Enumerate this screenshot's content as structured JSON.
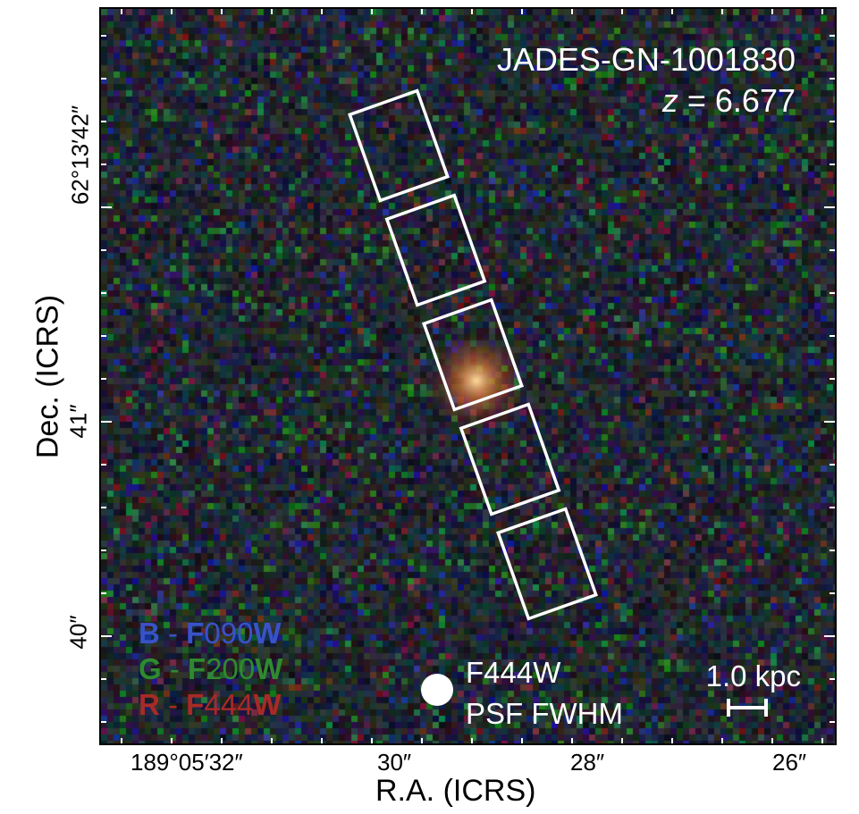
{
  "target": {
    "name": "JADES-GN-1001830",
    "redshift_symbol": "z",
    "redshift_rest": " = 6.677"
  },
  "legend": [
    {
      "ch": "B",
      "sep": " - ",
      "f": "F",
      "num": "090",
      "w": "W",
      "color": "#3a52c8"
    },
    {
      "ch": "G",
      "sep": " - ",
      "f": "F",
      "num": "200",
      "w": "W",
      "color": "#2f8a2f"
    },
    {
      "ch": "R",
      "sep": " - ",
      "f": "F",
      "num": "444",
      "w": "W",
      "color": "#a82a26"
    }
  ],
  "psf": {
    "line1": "F444W",
    "line2": "PSF FWHM"
  },
  "scalebar": {
    "label": "1.0 kpc"
  },
  "axes": {
    "xlabel": "R.A. (ICRS)",
    "ylabel": "Dec. (ICRS)",
    "xticks": [
      "189°05′32″",
      "30″",
      "28″",
      "26″"
    ],
    "yticks": [
      "62°13′42″",
      "41″",
      "40″"
    ]
  },
  "slit": {
    "count": 5,
    "color": "#ffffff"
  },
  "colors": {
    "background": "#05070f",
    "source": "#ffb060",
    "frame": "#000000",
    "overlay": "#ffffff"
  }
}
